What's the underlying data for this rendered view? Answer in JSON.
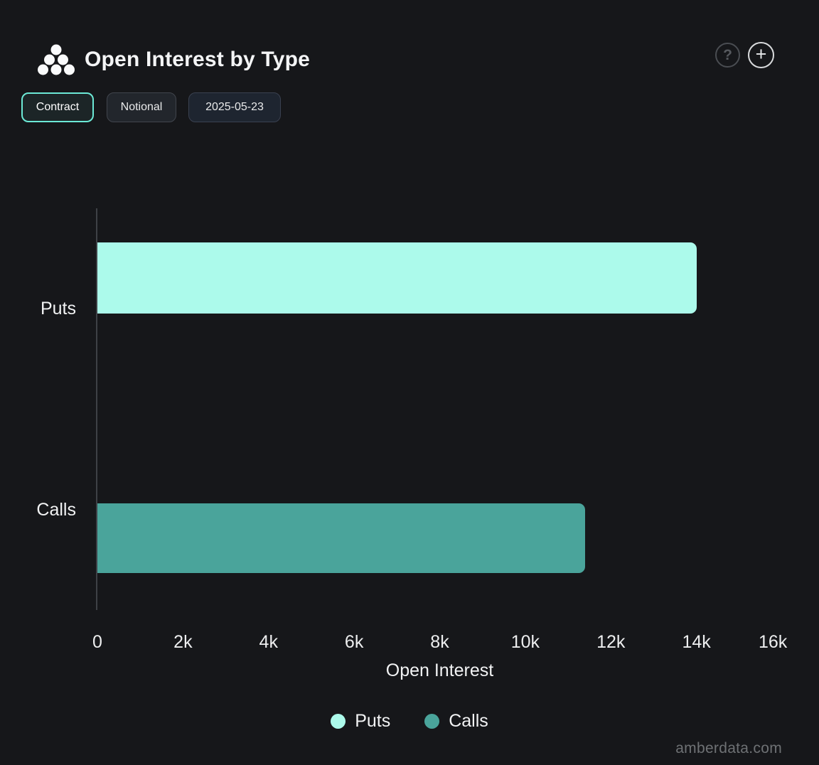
{
  "header": {
    "title": "Open Interest by Type",
    "actions": [
      {
        "name": "help",
        "glyph": "?"
      },
      {
        "name": "add",
        "glyph": "+"
      }
    ]
  },
  "controls": [
    {
      "label": "Contract",
      "active": true
    },
    {
      "label": "Notional",
      "active": false
    },
    {
      "label": "2025-05-23",
      "active": false
    }
  ],
  "chart_data": {
    "type": "bar",
    "orientation": "horizontal",
    "title": "Open Interest by Type",
    "categories": [
      "Puts",
      "Calls"
    ],
    "values": [
      14000,
      11400
    ],
    "series_colors": [
      "#ACFAEB",
      "#4AA49B"
    ],
    "xlabel": "Open Interest",
    "ylabel": "",
    "xlim": [
      0,
      16000
    ],
    "xticks": [
      0,
      2000,
      4000,
      6000,
      8000,
      10000,
      12000,
      14000,
      16000
    ],
    "xtick_labels": [
      "0",
      "2k",
      "4k",
      "6k",
      "8k",
      "10k",
      "12k",
      "14k",
      "16k"
    ],
    "grid": false,
    "legend_position": "bottom",
    "legend": [
      {
        "label": "Puts",
        "color": "#ACFAEB"
      },
      {
        "label": "Calls",
        "color": "#4AA49B"
      }
    ]
  },
  "watermark": "amberdata.com",
  "colors": {
    "background": "#16171A",
    "accent": "#6CE9D6",
    "axis_line": "#3E4146",
    "text_primary": "#F2F3F4",
    "text_muted": "#6E7174"
  }
}
